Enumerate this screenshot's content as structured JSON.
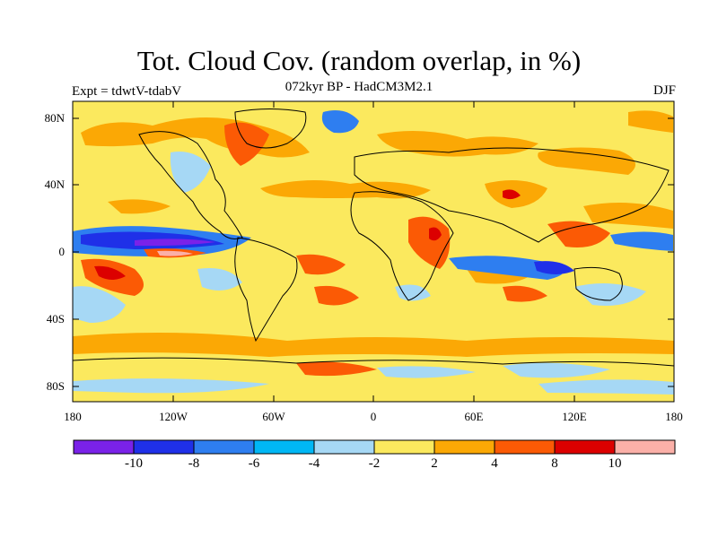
{
  "title": "Tot. Cloud Cov. (random overlap, in %)",
  "subtitle": "072kyr BP - HadCM3M2.1",
  "experiment": "Expt = tdwtV-tdabV",
  "season": "DJF",
  "lat_ticks": [
    "80N",
    "40N",
    "0",
    "40S",
    "80S"
  ],
  "lon_ticks": [
    "180",
    "120W",
    "60W",
    "0",
    "60E",
    "120E",
    "180"
  ],
  "colorbar": {
    "colors": [
      "#7a22e8",
      "#1f30e8",
      "#2e7ef0",
      "#00b7f5",
      "#a6d8f5",
      "#fbe95e",
      "#fba805",
      "#fb5a05",
      "#dc0000",
      "#fbb0a8"
    ],
    "labels": [
      "-10",
      "-8",
      "-6",
      "-4",
      "-2",
      "2",
      "4",
      "8",
      "10"
    ]
  }
}
